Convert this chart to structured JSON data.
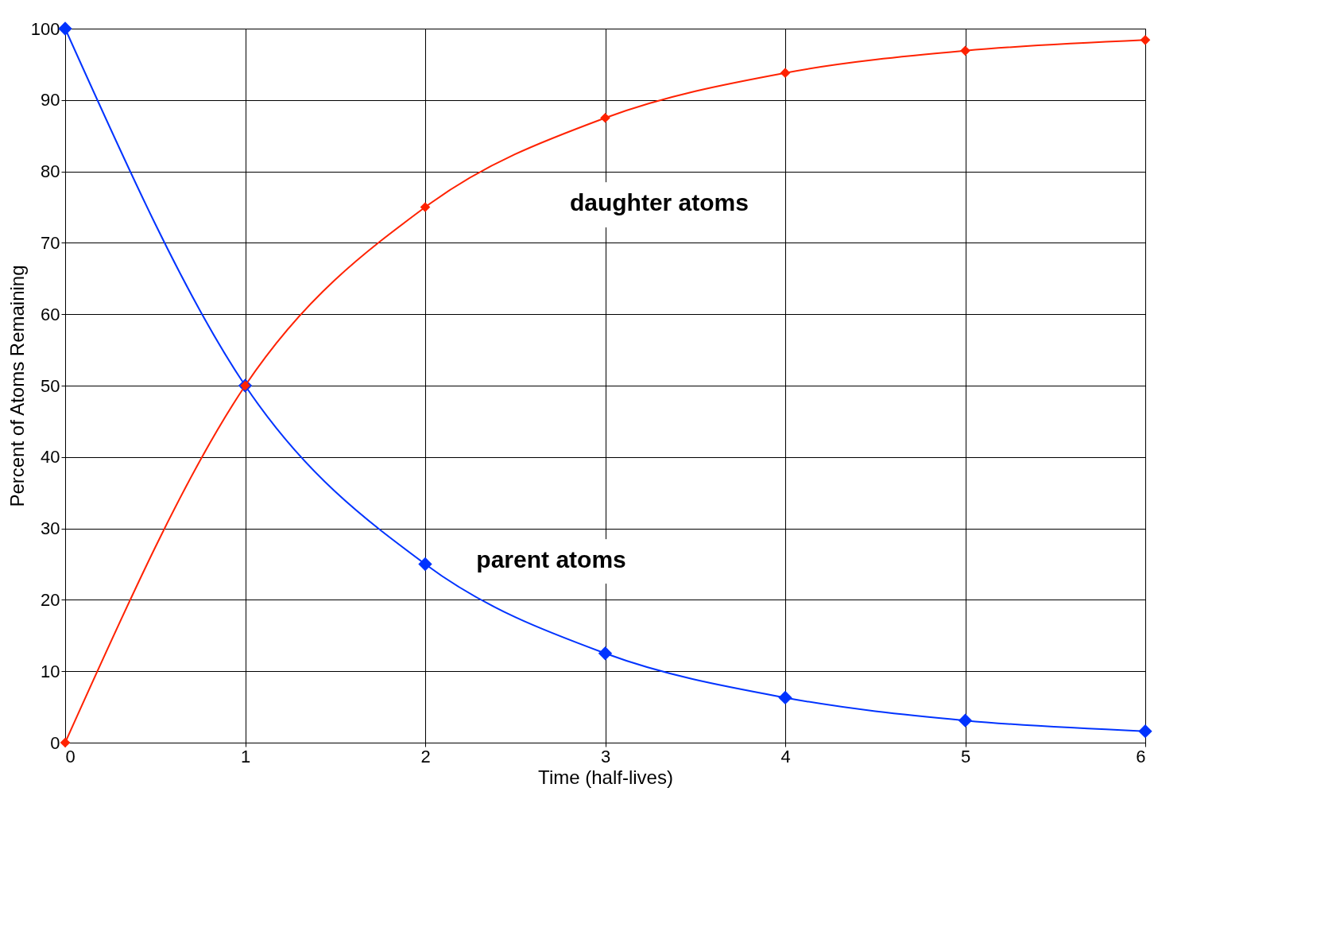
{
  "chart_data": {
    "type": "line",
    "xlabel": "Time (half-lives)",
    "ylabel": "Percent of Atoms Remaining",
    "x": [
      0,
      1,
      2,
      3,
      4,
      5,
      6
    ],
    "series": [
      {
        "color": "#0033ff",
        "values": [
          100,
          50,
          25,
          12.5,
          6.3,
          3.1,
          1.6
        ]
      },
      {
        "color": "#ff2200",
        "values": [
          0,
          50,
          75,
          87.5,
          93.8,
          96.9,
          98.4
        ]
      }
    ],
    "annotations": [
      "daughter atoms",
      "parent atoms"
    ],
    "xlim": [
      0,
      6
    ],
    "ylim": [
      0,
      100
    ],
    "xticks": [
      0,
      1,
      2,
      3,
      4,
      5,
      6
    ],
    "yticks": [
      0,
      10,
      20,
      30,
      40,
      50,
      60,
      70,
      80,
      90,
      100
    ],
    "grid": true,
    "marker": "diamond",
    "line_style": "solid"
  }
}
